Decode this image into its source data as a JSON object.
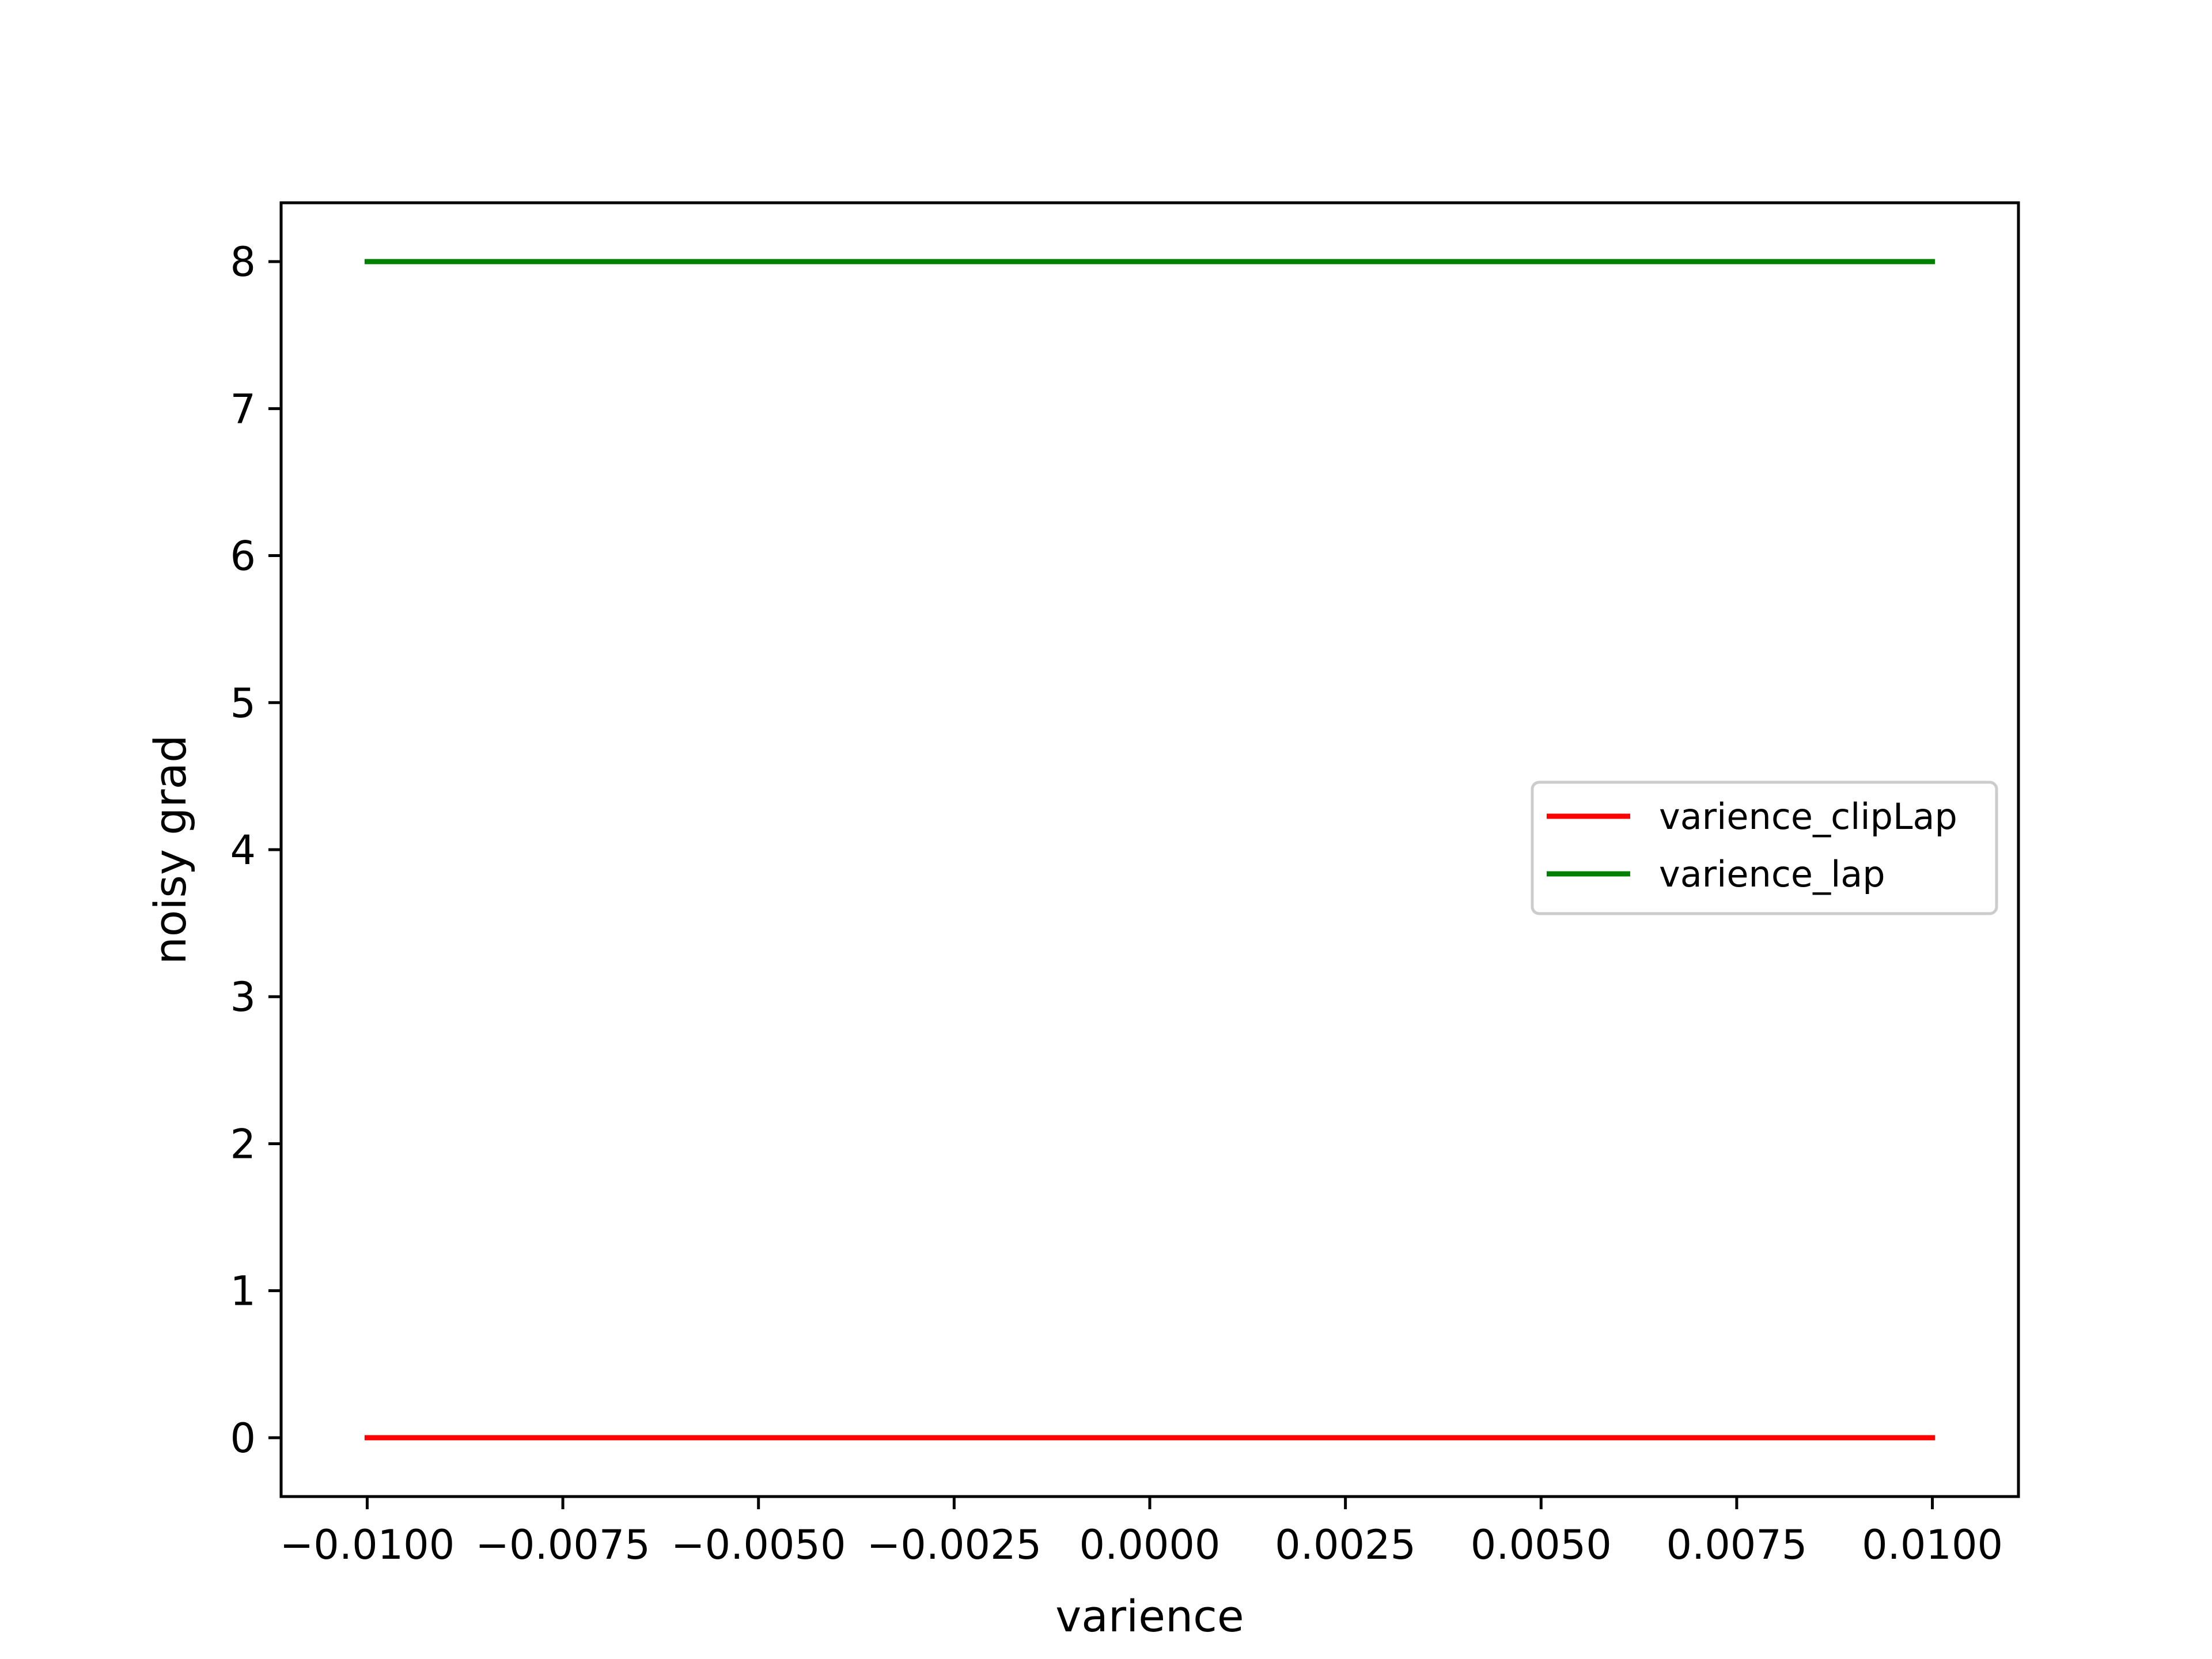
{
  "chart_data": {
    "type": "line",
    "title": "",
    "xlabel": "varience",
    "ylabel": "noisy grad",
    "xlim": [
      -0.0111,
      0.0111
    ],
    "ylim": [
      -0.4,
      8.4
    ],
    "xticks": [
      {
        "value": -0.01,
        "label": "−0.0100"
      },
      {
        "value": -0.0075,
        "label": "−0.0075"
      },
      {
        "value": -0.005,
        "label": "−0.0050"
      },
      {
        "value": -0.0025,
        "label": "−0.0025"
      },
      {
        "value": 0.0,
        "label": "0.0000"
      },
      {
        "value": 0.0025,
        "label": "0.0025"
      },
      {
        "value": 0.005,
        "label": "0.0050"
      },
      {
        "value": 0.0075,
        "label": "0.0075"
      },
      {
        "value": 0.01,
        "label": "0.0100"
      }
    ],
    "yticks": [
      {
        "value": 0,
        "label": "0"
      },
      {
        "value": 1,
        "label": "1"
      },
      {
        "value": 2,
        "label": "2"
      },
      {
        "value": 3,
        "label": "3"
      },
      {
        "value": 4,
        "label": "4"
      },
      {
        "value": 5,
        "label": "5"
      },
      {
        "value": 6,
        "label": "6"
      },
      {
        "value": 7,
        "label": "7"
      },
      {
        "value": 8,
        "label": "8"
      }
    ],
    "grid": false,
    "legend_position": "center-right",
    "series": [
      {
        "name": "varience_clipLap",
        "color": "#ff0000",
        "x": [
          -0.01,
          0.01
        ],
        "y": [
          0,
          0
        ]
      },
      {
        "name": "varience_lap",
        "color": "#008000",
        "x": [
          -0.01,
          0.01
        ],
        "y": [
          8,
          8
        ]
      }
    ]
  }
}
